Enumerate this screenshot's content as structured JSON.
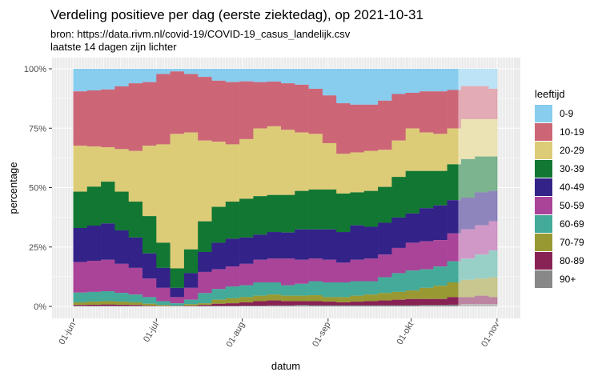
{
  "chart_data": {
    "type": "bar",
    "stacked": "percent",
    "title": "Verdeling positieve per dag (eerste ziektedag), op 2021-10-31",
    "subtitle": [
      "bron: https://data.rivm.nl/covid-19/COVID-19_casus_landelijk.csv",
      "laatste 14 dagen zijn lichter"
    ],
    "xlabel": "datum",
    "ylabel": "percentage",
    "legend_title": "leeftijd",
    "legend_position": "right",
    "ylim": [
      0,
      100
    ],
    "xlim": [
      "2021-05-25",
      "2021-11-07"
    ],
    "yticks": [
      "0%",
      "25%",
      "50%",
      "75%",
      "100%"
    ],
    "xticks": [
      {
        "date": "2021-06-01",
        "label": "01-jun"
      },
      {
        "date": "2021-07-01",
        "label": "01-jul"
      },
      {
        "date": "2021-08-01",
        "label": "01-aug"
      },
      {
        "date": "2021-09-01",
        "label": "01-sep"
      },
      {
        "date": "2021-10-01",
        "label": "01-okt"
      },
      {
        "date": "2021-11-01",
        "label": "01-nov"
      }
    ],
    "lighter_from": "2021-10-18",
    "data_end": "2021-10-31",
    "grid": true,
    "dates": [
      "2021-06-01",
      "2021-06-06",
      "2021-06-11",
      "2021-06-16",
      "2021-06-21",
      "2021-06-26",
      "2021-07-01",
      "2021-07-06",
      "2021-07-11",
      "2021-07-16",
      "2021-07-21",
      "2021-07-26",
      "2021-07-31",
      "2021-08-05",
      "2021-08-10",
      "2021-08-15",
      "2021-08-20",
      "2021-08-25",
      "2021-08-30",
      "2021-09-04",
      "2021-09-09",
      "2021-09-14",
      "2021-09-19",
      "2021-09-24",
      "2021-09-29",
      "2021-10-04",
      "2021-10-09",
      "2021-10-14",
      "2021-10-19",
      "2021-10-24",
      "2021-10-29"
    ],
    "series": [
      {
        "name": "0-9",
        "color": "#88CCEE",
        "values": [
          9.5,
          9.1,
          8.7,
          7.4,
          6.1,
          5.6,
          2.2,
          1.1,
          2.2,
          3.4,
          5,
          5.6,
          5.3,
          5.6,
          5.4,
          6.1,
          6.7,
          8.4,
          11.2,
          14.5,
          15.1,
          15.1,
          13.4,
          10.6,
          10.1,
          9.5,
          9.5,
          8.9,
          7.3,
          7.3,
          8.4
        ]
      },
      {
        "name": "10-19",
        "color": "#CC6677",
        "values": [
          22.9,
          23.6,
          24.3,
          26.4,
          28.5,
          26.8,
          29.6,
          26.3,
          24.6,
          26.8,
          25.7,
          26.2,
          24.3,
          19.5,
          18.8,
          19.6,
          20.1,
          19,
          20.1,
          21.3,
          20.1,
          19.5,
          20.7,
          19.6,
          15,
          17.3,
          17.9,
          16.2,
          13.9,
          13.9,
          12.8
        ]
      },
      {
        "name": "20-29",
        "color": "#DDCC77",
        "values": [
          19.3,
          16.9,
          14.5,
          17.9,
          21.3,
          29.6,
          41.4,
          56.6,
          49.2,
          34,
          27.4,
          24.1,
          25.1,
          28.5,
          28.9,
          27.4,
          24.6,
          23.4,
          19.5,
          16.7,
          16.8,
          16.8,
          15.6,
          15.3,
          17.9,
          16.2,
          15.6,
          15.1,
          16.8,
          15.7,
          15.7
        ]
      },
      {
        "name": "30-39",
        "color": "#117733",
        "values": [
          15.3,
          16.4,
          17.6,
          16.3,
          15.1,
          15.7,
          10.6,
          8.2,
          10,
          12.9,
          15.1,
          15.6,
          16.3,
          16.2,
          15.6,
          15.8,
          16.2,
          16.8,
          16.8,
          16.2,
          13.9,
          15.1,
          15.1,
          17.1,
          17.9,
          15.7,
          14.5,
          15.1,
          16.2,
          15.1,
          14.5
        ]
      },
      {
        "name": "40-49",
        "color": "#332288",
        "values": [
          14.3,
          14.8,
          15.3,
          14.1,
          12.8,
          10.6,
          8.4,
          3.9,
          6.2,
          8.4,
          11.2,
          11.7,
          11.1,
          10.6,
          11.2,
          11,
          12.8,
          12.3,
          12.8,
          12.9,
          14.5,
          13.4,
          13.4,
          12.8,
          12.3,
          13.9,
          14.6,
          14,
          13.4,
          13.9,
          12.8
        ]
      },
      {
        "name": "50-59",
        "color": "#AA4499",
        "values": [
          12.9,
          13.1,
          13.2,
          12.2,
          11.2,
          7.8,
          5.6,
          2.6,
          5,
          8.9,
          8.3,
          8.4,
          9,
          9.5,
          10,
          11.2,
          10.1,
          9.5,
          9.5,
          8.3,
          9,
          9.5,
          9.5,
          10.6,
          11.7,
          11.8,
          11.1,
          11.7,
          12.3,
          12.3,
          12.3
        ]
      },
      {
        "name": "60-69",
        "color": "#44AA99",
        "values": [
          4.1,
          4.1,
          4.2,
          3.7,
          3.3,
          2.8,
          1.6,
          1,
          1.9,
          4.3,
          4.5,
          5,
          5,
          5.6,
          5.1,
          4.4,
          5,
          5.9,
          6.2,
          6.2,
          6.1,
          5.6,
          6.7,
          7.9,
          8.4,
          7.8,
          8.1,
          8.9,
          8.9,
          10.1,
          11.2
        ]
      },
      {
        "name": "70-79",
        "color": "#999933",
        "values": [
          1.1,
          1.3,
          1.4,
          1.3,
          1.1,
          0.8,
          0.4,
          0.1,
          0.6,
          0.7,
          1.7,
          2.1,
          2.2,
          2.3,
          2.5,
          2.3,
          2.3,
          2.5,
          1.9,
          2.2,
          2.5,
          2.8,
          3.1,
          3.3,
          3.6,
          4.7,
          5.6,
          6.2,
          7.3,
          7.2,
          8.4
        ]
      },
      {
        "name": "80-89",
        "color": "#882255",
        "values": [
          0.4,
          0.5,
          0.6,
          0.5,
          0.4,
          0.2,
          0.1,
          0.1,
          0.2,
          0.5,
          0.9,
          1.1,
          1.4,
          1.9,
          2.1,
          1.8,
          1.6,
          1.7,
          1.5,
          1.2,
          1.5,
          1.7,
          2,
          2.3,
          2.6,
          2.5,
          2.5,
          3.2,
          3,
          3.6,
          3
        ]
      },
      {
        "name": "90+",
        "color": "#888888",
        "values": [
          0.2,
          0.2,
          0.2,
          0.2,
          0.2,
          0.1,
          0.1,
          0.1,
          0.1,
          0.1,
          0.2,
          0.2,
          0.3,
          0.3,
          0.4,
          0.4,
          0.6,
          0.5,
          0.5,
          0.5,
          0.5,
          0.5,
          0.5,
          0.5,
          0.5,
          0.6,
          0.6,
          0.7,
          0.9,
          0.9,
          0.9
        ]
      }
    ]
  }
}
